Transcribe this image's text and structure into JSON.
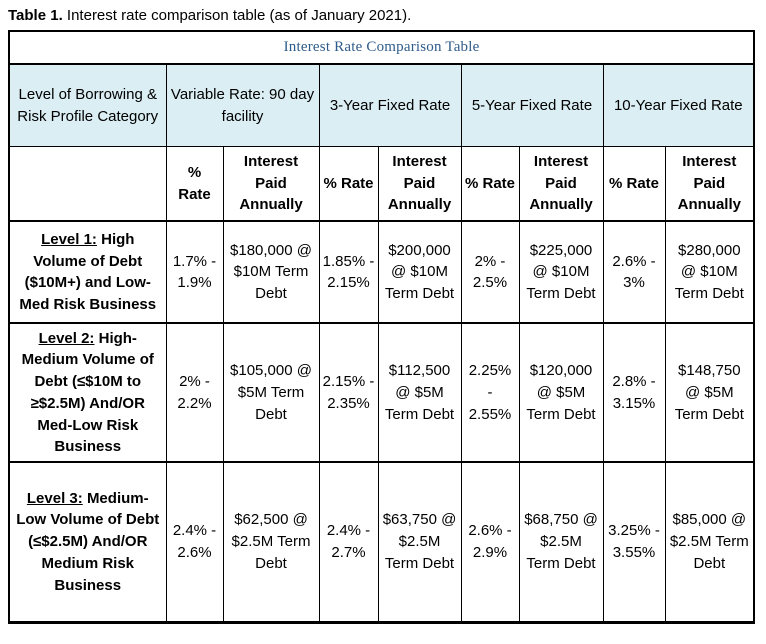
{
  "caption": {
    "label": "Table 1.",
    "text": "Interest rate comparison table (as of January 2021)."
  },
  "colors": {
    "header_band_bg": "#DAEEF3",
    "title_text": "#2E5C8A",
    "border": "#000000"
  },
  "table": {
    "title": "Interest Rate Comparison Table",
    "category_header": "Level of Borrowing & Risk Profile Category",
    "groups": [
      {
        "label": "Variable Rate: 90 day facility"
      },
      {
        "label": "3-Year Fixed Rate"
      },
      {
        "label": "5-Year Fixed Rate"
      },
      {
        "label": "10-Year Fixed Rate"
      }
    ],
    "subheaders": {
      "rate": "% Rate",
      "interest": "Interest Paid Annually"
    },
    "rows": [
      {
        "level_label": "Level 1:",
        "description": "High Volume of Debt ($10M+) and Low-Med Risk Business",
        "cells": [
          {
            "rate": "1.7% - 1.9%",
            "interest": "$180,000 @ $10M Term Debt"
          },
          {
            "rate": "1.85% - 2.15%",
            "interest": "$200,000 @ $10M Term Debt"
          },
          {
            "rate": "2% - 2.5%",
            "interest": "$225,000 @ $10M Term Debt"
          },
          {
            "rate": "2.6% - 3%",
            "interest": "$280,000 @ $10M Term Debt"
          }
        ]
      },
      {
        "level_label": "Level 2:",
        "description": "High-Medium Volume of Debt  (≤$10M to ≥$2.5M) And/OR Med-Low Risk Business",
        "cells": [
          {
            "rate": "2% - 2.2%",
            "interest": "$105,000 @ $5M Term Debt"
          },
          {
            "rate": "2.15% - 2.35%",
            "interest": "$112,500 @ $5M Term Debt"
          },
          {
            "rate": "2.25% - 2.55%",
            "interest": "$120,000 @ $5M Term Debt"
          },
          {
            "rate": "2.8% - 3.15%",
            "interest": "$148,750 @ $5M Term Debt"
          }
        ]
      },
      {
        "level_label": "Level 3:",
        "description": "Medium-Low Volume of Debt (≤$2.5M) And/OR Medium Risk Business",
        "cells": [
          {
            "rate": "2.4% - 2.6%",
            "interest": "$62,500 @ $2.5M Term Debt"
          },
          {
            "rate": "2.4% - 2.7%",
            "interest": "$63,750 @ $2.5M Term Debt"
          },
          {
            "rate": "2.6% - 2.9%",
            "interest": "$68,750 @ $2.5M Term Debt"
          },
          {
            "rate": "3.25% - 3.55%",
            "interest": "$85,000 @ $2.5M Term Debt"
          }
        ]
      }
    ]
  }
}
